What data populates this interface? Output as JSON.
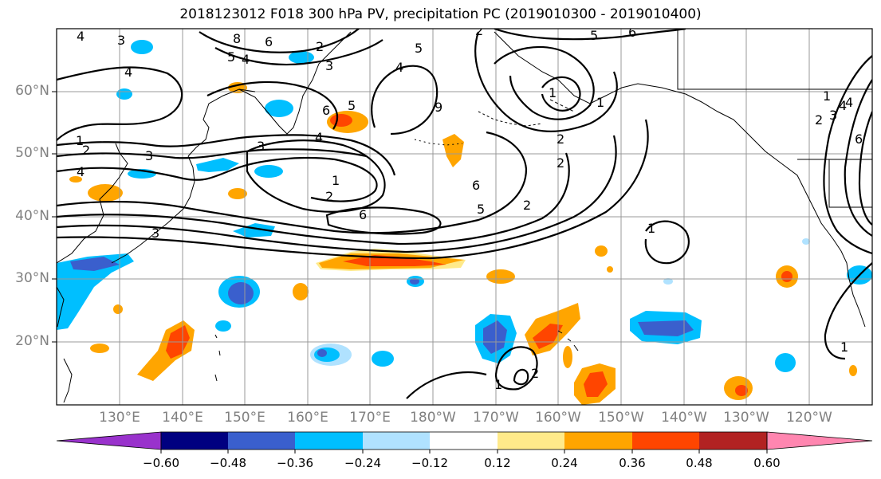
{
  "title": "2018123012 F018 300 hPa PV, precipitation PC (2019010300 - 2019010400)",
  "lat_labels": [
    "60°N",
    "50°N",
    "40°N",
    "30°N",
    "20°N"
  ],
  "lon_labels": [
    "130°E",
    "140°E",
    "150°E",
    "160°E",
    "170°E",
    "180°W",
    "170°W",
    "160°W",
    "150°W",
    "140°W",
    "130°W",
    "120°W"
  ],
  "colorbar": {
    "tick_labels": [
      "−0.60",
      "−0.48",
      "−0.36",
      "−0.24",
      "−0.12",
      "0.12",
      "0.24",
      "0.36",
      "0.48",
      "0.60"
    ],
    "colors": [
      "#9932cc",
      "#000080",
      "#3a5fcd",
      "#00bfff",
      "#b0e2ff",
      "#ffffff",
      "#ffea8a",
      "#ffa500",
      "#ff4500",
      "#b22222",
      "#ff86b0"
    ]
  },
  "contour_labels": [
    "4",
    "3",
    "8",
    "6",
    "2",
    "5",
    "4",
    "3",
    "2",
    "4",
    "5",
    "5",
    "6",
    "4",
    "5",
    "6",
    "9",
    "1",
    "1",
    "2",
    "3",
    "3",
    "4",
    "2",
    "1",
    "2",
    "6",
    "6",
    "5",
    "2",
    "4",
    "2",
    "1",
    "1",
    "3",
    "4",
    "1",
    "2",
    "3",
    "4",
    "6",
    "1",
    "1",
    "2"
  ]
}
